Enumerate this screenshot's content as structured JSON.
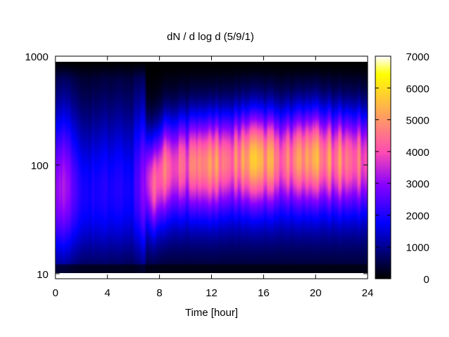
{
  "chart_data": {
    "type": "heatmap",
    "title": "dN / d log d (5/9/1)",
    "xlabel": "Time [hour]",
    "ylabel": "",
    "x_ticks": [
      0,
      4,
      8,
      12,
      16,
      20,
      24
    ],
    "xlim": [
      0,
      24
    ],
    "y_scale": "log",
    "y_ticks": [
      10,
      100,
      1000
    ],
    "ylim": [
      9,
      1000
    ],
    "colorbar": {
      "ticks": [
        0,
        1000,
        2000,
        3000,
        4000,
        5000,
        6000,
        7000
      ],
      "range": [
        0,
        7000
      ],
      "palette": "black-purple-red-orange-yellow"
    },
    "grid": false,
    "legend": "none",
    "mode_diameter_over_time": [
      {
        "hour": 0,
        "diameter": 80,
        "peak": 3000
      },
      {
        "hour": 2,
        "diameter": 90,
        "peak": 1400
      },
      {
        "hour": 4,
        "diameter": 100,
        "peak": 1300
      },
      {
        "hour": 6,
        "diameter": 110,
        "peak": 1400
      },
      {
        "hour": 7.5,
        "diameter": 70,
        "peak": 3500
      },
      {
        "hour": 8.5,
        "diameter": 100,
        "peak": 4200
      },
      {
        "hour": 10,
        "diameter": 110,
        "peak": 3900
      },
      {
        "hour": 12,
        "diameter": 110,
        "peak": 4600
      },
      {
        "hour": 14,
        "diameter": 120,
        "peak": 4300
      },
      {
        "hour": 15.5,
        "diameter": 120,
        "peak": 5200
      },
      {
        "hour": 17,
        "diameter": 120,
        "peak": 4300
      },
      {
        "hour": 20,
        "diameter": 125,
        "peak": 4700
      },
      {
        "hour": 22,
        "diameter": 120,
        "peak": 4300
      },
      {
        "hour": 24,
        "diameter": 120,
        "peak": 4000
      }
    ]
  }
}
